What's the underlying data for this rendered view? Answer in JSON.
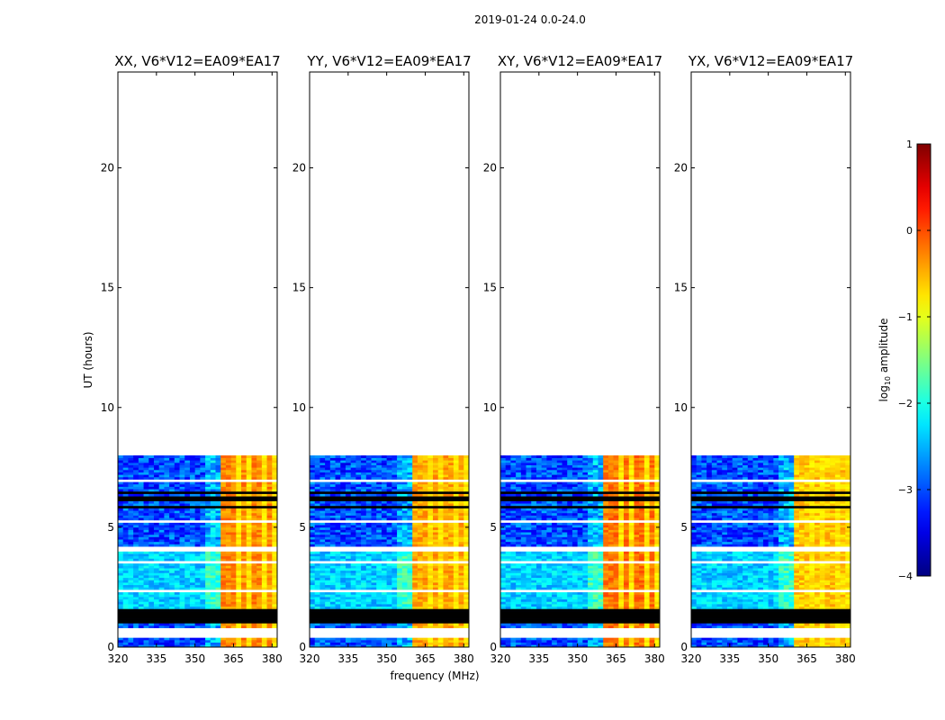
{
  "figure": {
    "suptitle": "2019-01-24 0.0-24.0"
  },
  "chart_data": {
    "type": "heatmap",
    "title": "2019-01-24 0.0-24.0",
    "xlabel": "frequency (MHz)",
    "ylabel": "UT (hours)",
    "xlim": [
      320,
      382
    ],
    "ylim": [
      0,
      24
    ],
    "xticks": [
      320,
      335,
      350,
      365,
      380
    ],
    "yticks": [
      0,
      5,
      10,
      15,
      20
    ],
    "data_extent_hours": [
      0,
      8
    ],
    "panels": [
      {
        "title": "XX, V6*V12=EA09*EA17",
        "polarization": "XX",
        "baseline": "V6*V12=EA09*EA17",
        "band_level_log10": -0.3
      },
      {
        "title": "YY, V6*V12=EA09*EA17",
        "polarization": "YY",
        "baseline": "V6*V12=EA09*EA17",
        "band_level_log10": -0.45
      },
      {
        "title": "XY, V6*V12=EA09*EA17",
        "polarization": "XY",
        "baseline": "V6*V12=EA09*EA17",
        "band_level_log10": -0.2
      },
      {
        "title": "YX, V6*V12=EA09*EA17",
        "polarization": "YX",
        "baseline": "V6*V12=EA09*EA17",
        "band_level_log10": -0.6
      }
    ],
    "colorbar": {
      "label": "log",
      "label_sub": "10",
      "label_tail": " amplitude",
      "range": [
        -4,
        1
      ],
      "ticks": [
        1,
        0,
        -1,
        -2,
        -3,
        -4
      ],
      "tick_labels": [
        "1",
        "0",
        "−1",
        "−2",
        "−3",
        "−4"
      ],
      "colormap": "jet"
    }
  }
}
